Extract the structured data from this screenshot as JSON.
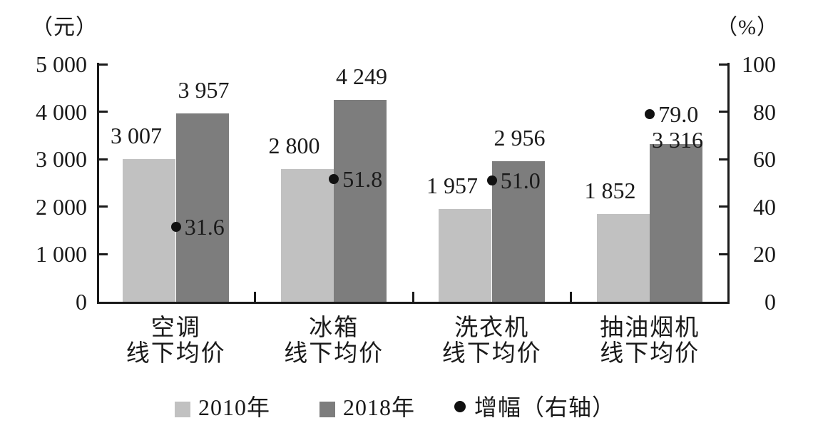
{
  "chart_data": {
    "type": "bar",
    "subtype": "grouped bars with point markers on secondary axis",
    "title": "",
    "grid": false,
    "legend_position": "bottom",
    "categories": [
      {
        "line1": "空调",
        "line2": "线下均价"
      },
      {
        "line1": "冰箱",
        "line2": "线下均价"
      },
      {
        "line1": "洗衣机",
        "line2": "线下均价"
      },
      {
        "line1": "抽油烟机",
        "line2": "线下均价"
      }
    ],
    "series": [
      {
        "name": "2010年",
        "type": "bar",
        "axis": "left",
        "color": "#c1c1c1",
        "values": [
          3007,
          2800,
          1957,
          1852
        ],
        "value_labels": [
          "3 007",
          "2 800",
          "1 957",
          "1 852"
        ]
      },
      {
        "name": "2018年",
        "type": "bar",
        "axis": "left",
        "color": "#7d7d7d",
        "values": [
          3957,
          4249,
          2956,
          3316
        ],
        "value_labels": [
          "3 957",
          "4 249",
          "2 956",
          "3 316"
        ]
      },
      {
        "name": "增幅（右轴）",
        "type": "scatter",
        "axis": "right",
        "color": "#111111",
        "values": [
          31.6,
          51.8,
          51.0,
          79.0
        ],
        "value_labels": [
          "31.6",
          "51.8",
          "51.0",
          "79.0"
        ]
      }
    ],
    "axes": {
      "left": {
        "unit_label": "（元）",
        "range": [
          0,
          5000
        ],
        "tick_values": [
          5000,
          4000,
          3000,
          2000,
          1000,
          0
        ],
        "tick_labels": [
          "5 000",
          "4 000",
          "3 000",
          "2 000",
          "1 000",
          "0"
        ]
      },
      "right": {
        "unit_label": "（%）",
        "range": [
          0,
          100
        ],
        "tick_values": [
          100,
          80,
          60,
          40,
          20,
          0
        ],
        "tick_labels": [
          "100",
          "80",
          "60",
          "40",
          "20",
          "0"
        ]
      }
    },
    "layout_hints": {
      "bar_label_dy": [
        [
          0,
          0,
          0,
          0
        ],
        [
          0,
          0,
          0,
          27
        ]
      ]
    }
  },
  "legend": {
    "items": [
      {
        "label": "2010年",
        "marker": "square",
        "color": "#c1c1c1"
      },
      {
        "label": "2018年",
        "marker": "square",
        "color": "#7d7d7d"
      },
      {
        "label": "增幅（右轴）",
        "marker": "dot",
        "color": "#111111"
      }
    ]
  },
  "colors": {
    "axis": "#1a1a1a",
    "text": "#1a1a1a",
    "background": "#ffffff"
  }
}
